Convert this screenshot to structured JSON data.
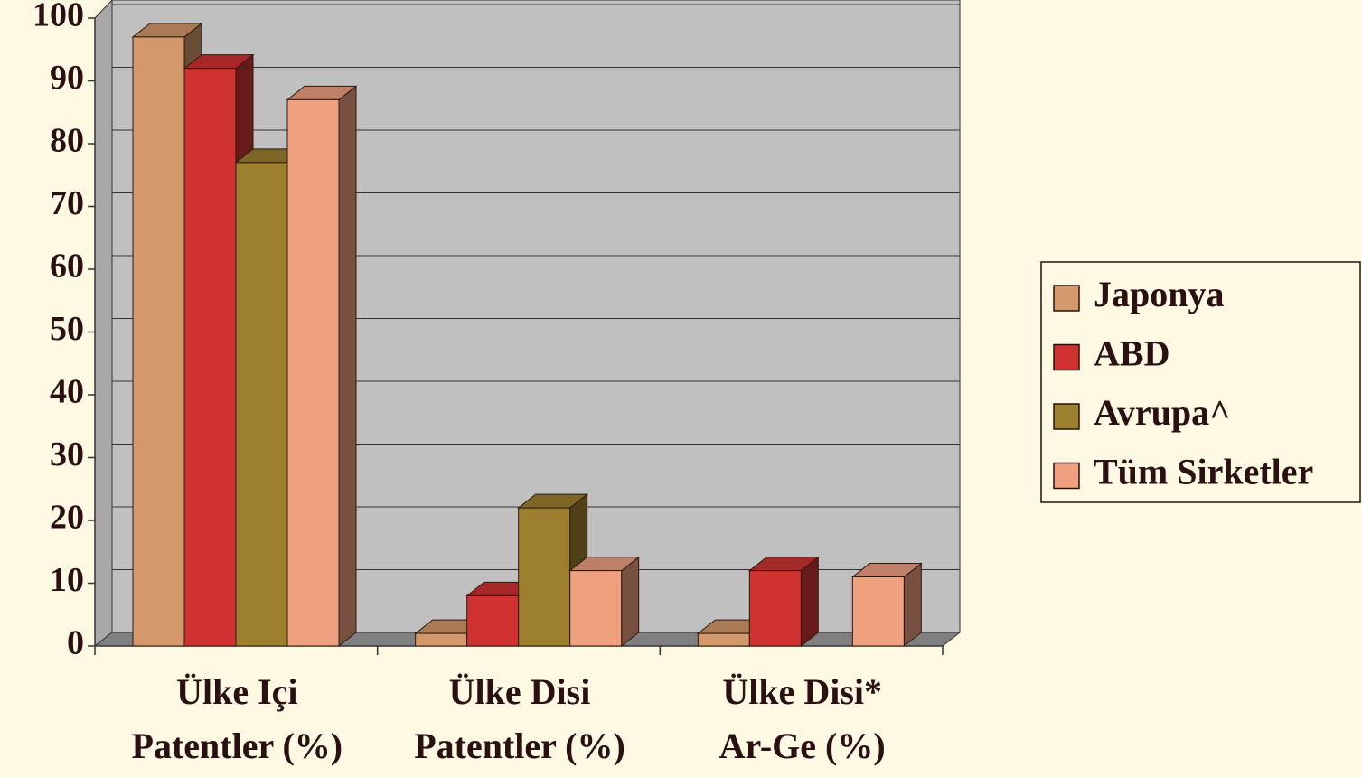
{
  "chart_data": {
    "type": "bar3d",
    "categories": [
      [
        "Ülke Içi",
        "Patentler (%)"
      ],
      [
        "Ülke Disi",
        "Patentler (%)"
      ],
      [
        "Ülke Disi*",
        "Ar-Ge (%)"
      ]
    ],
    "series": [
      {
        "name": "Japonya",
        "color": "#d4996a",
        "values": [
          97,
          2,
          2
        ]
      },
      {
        "name": "ABD",
        "color": "#d03232",
        "values": [
          92,
          8,
          12
        ]
      },
      {
        "name": "Avrupa^",
        "color": "#9c8030",
        "values": [
          77,
          22,
          null
        ]
      },
      {
        "name": "Tüm Sirketler",
        "color": "#eea07f",
        "values": [
          87,
          12,
          11
        ]
      }
    ],
    "ylim": [
      0,
      100
    ],
    "yticks": [
      0,
      10,
      20,
      30,
      40,
      50,
      60,
      70,
      80,
      90,
      100
    ],
    "grid": true,
    "legend": "right"
  }
}
